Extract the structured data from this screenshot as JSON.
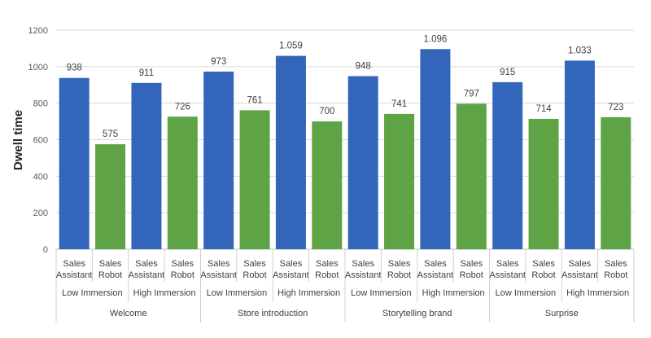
{
  "chart_data": {
    "type": "bar",
    "ylabel": "Dwell time",
    "xlabel": "",
    "title": "",
    "ylim": [
      0,
      1200
    ],
    "yticks": [
      0,
      200,
      400,
      600,
      800,
      1000,
      1200
    ],
    "grid": true,
    "colors": {
      "Sales Assistant": "#3366bb",
      "Sales Robot": "#5ea345"
    },
    "agent_labels": [
      {
        "line1": "Sales",
        "line2": "Assistant"
      },
      {
        "line1": "Sales",
        "line2": "Robot"
      }
    ],
    "groups": [
      {
        "scenario": "Welcome",
        "immersions": [
          {
            "label": "Low Immersion",
            "bars": [
              {
                "agent": "Sales Assistant",
                "value": 938,
                "label": "938"
              },
              {
                "agent": "Sales Robot",
                "value": 575,
                "label": "575"
              }
            ]
          },
          {
            "label": "High Immersion",
            "bars": [
              {
                "agent": "Sales Assistant",
                "value": 911,
                "label": "911"
              },
              {
                "agent": "Sales Robot",
                "value": 726,
                "label": "726"
              }
            ]
          }
        ]
      },
      {
        "scenario": "Store introduction",
        "immersions": [
          {
            "label": "Low Immersion",
            "bars": [
              {
                "agent": "Sales Assistant",
                "value": 973,
                "label": "973"
              },
              {
                "agent": "Sales Robot",
                "value": 761,
                "label": "761"
              }
            ]
          },
          {
            "label": "High Immersion",
            "bars": [
              {
                "agent": "Sales Assistant",
                "value": 1059,
                "label": "1.059"
              },
              {
                "agent": "Sales Robot",
                "value": 700,
                "label": "700"
              }
            ]
          }
        ]
      },
      {
        "scenario": "Storytelling brand",
        "immersions": [
          {
            "label": "Low Immersion",
            "bars": [
              {
                "agent": "Sales Assistant",
                "value": 948,
                "label": "948"
              },
              {
                "agent": "Sales Robot",
                "value": 741,
                "label": "741"
              }
            ]
          },
          {
            "label": "High Immersion",
            "bars": [
              {
                "agent": "Sales Assistant",
                "value": 1096,
                "label": "1.096"
              },
              {
                "agent": "Sales Robot",
                "value": 797,
                "label": "797"
              }
            ]
          }
        ]
      },
      {
        "scenario": "Surprise",
        "immersions": [
          {
            "label": "Low Immersion",
            "bars": [
              {
                "agent": "Sales Assistant",
                "value": 915,
                "label": "915"
              },
              {
                "agent": "Sales Robot",
                "value": 714,
                "label": "714"
              }
            ]
          },
          {
            "label": "High Immersion",
            "bars": [
              {
                "agent": "Sales Assistant",
                "value": 1033,
                "label": "1.033"
              },
              {
                "agent": "Sales Robot",
                "value": 723,
                "label": "723"
              }
            ]
          }
        ]
      }
    ]
  }
}
